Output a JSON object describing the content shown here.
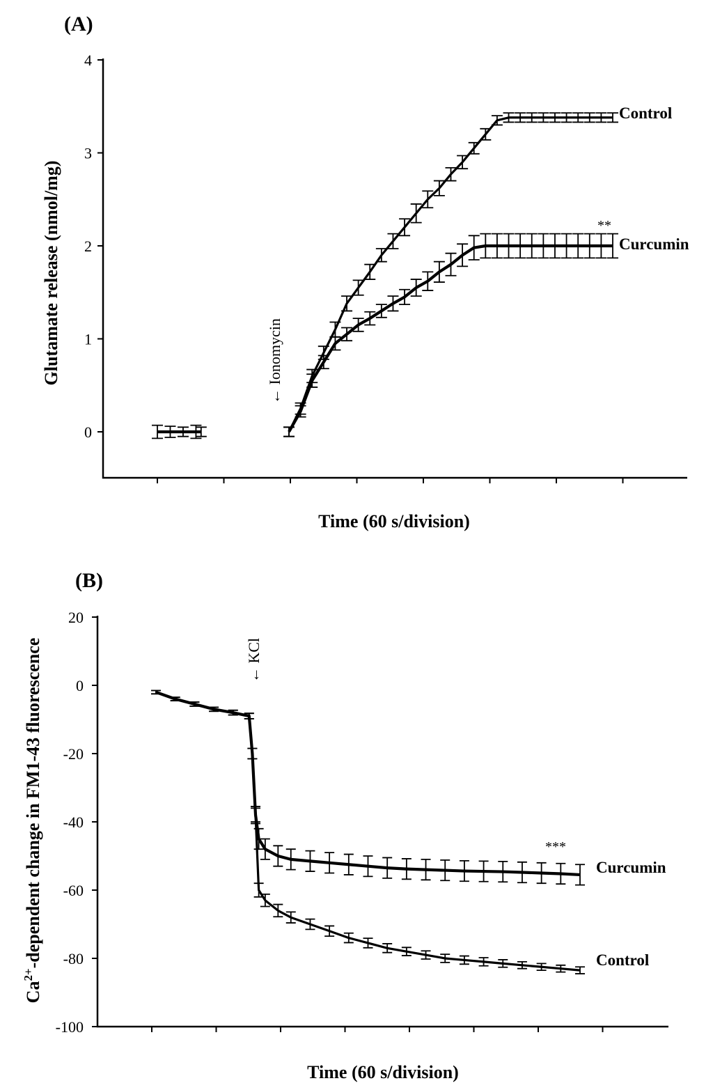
{
  "chart_data": [
    {
      "panel": "(A)",
      "type": "line",
      "xlabel": "Time (60 s/division)",
      "ylabel": "Glutamate release (nmol/mg)",
      "ylim": [
        -0.5,
        4
      ],
      "yticks": [
        0,
        1,
        2,
        3,
        4
      ],
      "x_divisions": 8,
      "xlim": [
        -0.85,
        8.0
      ],
      "x": [
        0.0,
        0.25,
        0.5,
        0.75,
        1.0,
        1.25,
        1.5,
        1.75,
        2.0,
        2.25,
        2.5,
        2.75,
        3.0,
        3.25,
        3.5,
        3.75,
        4.0,
        4.25,
        4.5,
        4.75,
        5.0,
        5.25,
        5.5,
        5.75,
        6.0,
        6.25,
        6.5,
        6.75,
        7.0
      ],
      "series": [
        {
          "name": "Control",
          "values": [
            0.0,
            0.25,
            0.6,
            0.85,
            1.1,
            1.38,
            1.55,
            1.72,
            1.9,
            2.05,
            2.2,
            2.35,
            2.5,
            2.62,
            2.77,
            2.9,
            3.05,
            3.2,
            3.35,
            3.38,
            3.38,
            3.38,
            3.38,
            3.38,
            3.38,
            3.38,
            3.38,
            3.38,
            3.38
          ],
          "errors": [
            0.05,
            0.06,
            0.07,
            0.07,
            0.08,
            0.08,
            0.08,
            0.08,
            0.07,
            0.08,
            0.09,
            0.1,
            0.09,
            0.08,
            0.07,
            0.07,
            0.06,
            0.06,
            0.05,
            0.05,
            0.05,
            0.05,
            0.05,
            0.05,
            0.05,
            0.05,
            0.05,
            0.05,
            0.05
          ]
        },
        {
          "name": "Curcumin",
          "values": [
            0.0,
            0.22,
            0.55,
            0.75,
            0.95,
            1.05,
            1.15,
            1.22,
            1.3,
            1.38,
            1.45,
            1.55,
            1.62,
            1.72,
            1.8,
            1.9,
            1.98,
            2.0,
            2.0,
            2.0,
            2.0,
            2.0,
            2.0,
            2.0,
            2.0,
            2.0,
            2.0,
            2.0,
            2.0
          ],
          "errors": [
            0.05,
            0.06,
            0.07,
            0.07,
            0.07,
            0.07,
            0.07,
            0.07,
            0.07,
            0.08,
            0.08,
            0.09,
            0.1,
            0.11,
            0.12,
            0.12,
            0.13,
            0.13,
            0.13,
            0.13,
            0.13,
            0.13,
            0.13,
            0.13,
            0.13,
            0.13,
            0.13,
            0.13,
            0.13
          ]
        }
      ],
      "baseline": {
        "x": [
          -0.85,
          -0.6,
          -0.35,
          -0.1,
          0.0
        ],
        "value": 0.0,
        "errors": [
          0.07,
          0.06,
          0.05,
          0.07,
          0.05
        ]
      },
      "annotations": [
        {
          "text": "← Ionomycin",
          "x": -0.1
        }
      ],
      "significance": "**"
    },
    {
      "panel": "(B)",
      "type": "line",
      "xlabel": "Time (60 s/division)",
      "ylabel_main": "-dependent change in FM1-43 fluorescence",
      "ylabel_prefix": "Ca",
      "ylabel_superscript": "2+",
      "ylim": [
        -100,
        20
      ],
      "yticks": [
        20,
        0,
        -20,
        -40,
        -60,
        -80,
        -100
      ],
      "x_divisions": 7,
      "xlim": [
        0,
        6.6
      ],
      "series": [
        {
          "name": "Curcumin",
          "x": [
            0.0,
            0.3,
            0.6,
            0.9,
            1.2,
            1.45,
            1.5,
            1.55,
            1.6,
            1.7,
            1.9,
            2.1,
            2.4,
            2.7,
            3.0,
            3.3,
            3.6,
            3.9,
            4.2,
            4.5,
            4.8,
            5.1,
            5.4,
            5.7,
            6.0,
            6.3,
            6.6
          ],
          "values": [
            -2,
            -4,
            -5.5,
            -7,
            -8,
            -9,
            -20,
            -38,
            -45,
            -48,
            -50,
            -51,
            -51.5,
            -52,
            -52.5,
            -53,
            -53.5,
            -53.8,
            -54,
            -54.2,
            -54.4,
            -54.5,
            -54.6,
            -54.8,
            -55,
            -55.2,
            -55.5
          ],
          "errors": [
            0.5,
            0.5,
            0.6,
            0.6,
            0.7,
            0.8,
            1.5,
            2.5,
            3,
            3,
            3,
            3,
            3,
            3,
            3,
            3,
            3,
            3,
            3,
            3,
            3,
            3,
            3,
            3,
            3,
            3,
            3
          ]
        },
        {
          "name": "Control",
          "x": [
            0.0,
            0.3,
            0.6,
            0.9,
            1.2,
            1.45,
            1.5,
            1.55,
            1.6,
            1.7,
            1.9,
            2.1,
            2.4,
            2.7,
            3.0,
            3.3,
            3.6,
            3.9,
            4.2,
            4.5,
            4.8,
            5.1,
            5.4,
            5.7,
            6.0,
            6.3,
            6.6
          ],
          "values": [
            -2,
            -4,
            -5.5,
            -7,
            -8,
            -9,
            -20,
            -38,
            -60,
            -63,
            -66,
            -68,
            -70,
            -72,
            -74,
            -75.5,
            -77,
            -78,
            -79,
            -80,
            -80.5,
            -81,
            -81.5,
            -82,
            -82.5,
            -83,
            -83.5
          ],
          "errors": [
            0.5,
            0.5,
            0.6,
            0.6,
            0.7,
            0.8,
            1.5,
            2.0,
            2.0,
            1.8,
            1.8,
            1.6,
            1.5,
            1.5,
            1.4,
            1.4,
            1.3,
            1.2,
            1.2,
            1.2,
            1.2,
            1.2,
            1.1,
            1.0,
            1.0,
            1.0,
            1.0
          ]
        }
      ],
      "annotations": [
        {
          "text": "← KCl",
          "x": 1.5
        }
      ],
      "significance": "***"
    }
  ]
}
